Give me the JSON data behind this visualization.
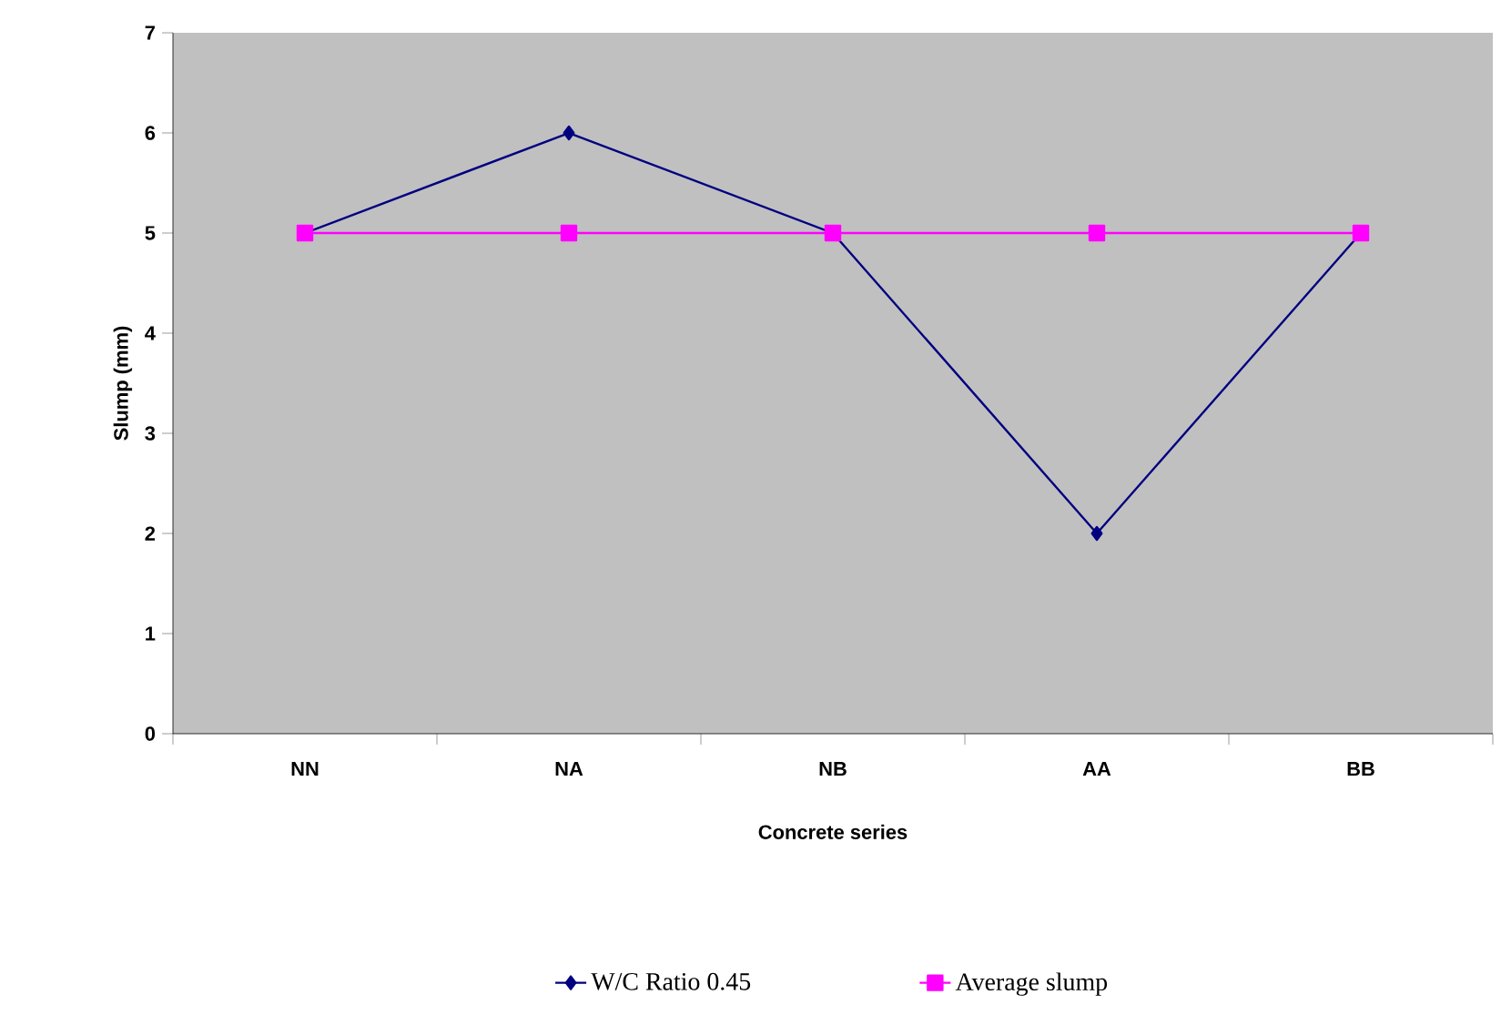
{
  "chart_data": {
    "type": "line",
    "xlabel": "Concrete series",
    "ylabel": "Slump (mm)",
    "categories": [
      "NN",
      "NA",
      "NB",
      "AA",
      "BB"
    ],
    "series": [
      {
        "name": "W/C Ratio 0.45",
        "color": "#000080",
        "marker": "diamond",
        "values": [
          5,
          6,
          5,
          2,
          5
        ]
      },
      {
        "name": "Average slump",
        "color": "#ff00ff",
        "marker": "square",
        "values": [
          5,
          5,
          5,
          5,
          5
        ]
      }
    ],
    "ylim": [
      0,
      7
    ],
    "yticks": [
      0,
      1,
      2,
      3,
      4,
      5,
      6,
      7
    ],
    "legend": "bottom",
    "grid": false
  }
}
